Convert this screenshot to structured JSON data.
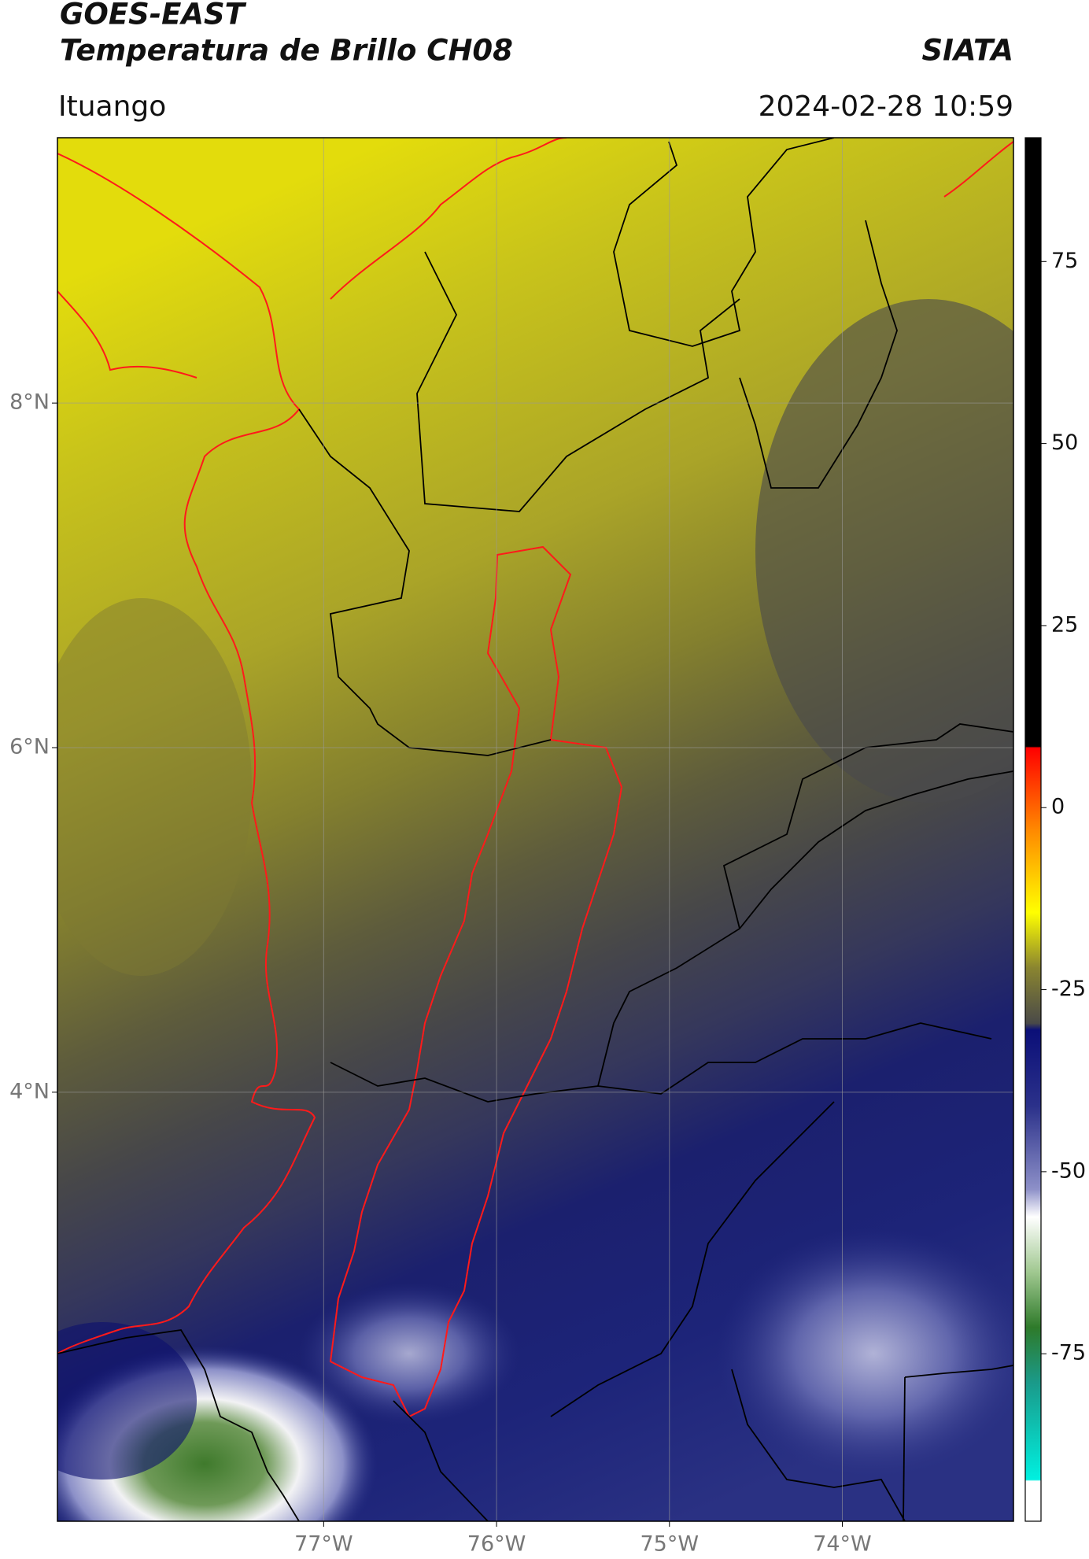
{
  "header": {
    "title": "GOES-EAST",
    "subtitle": "Temperatura de Brillo CH08",
    "source": "SIATA",
    "location": "Ituango",
    "datetime": "2024-02-28 10:59"
  },
  "map": {
    "xlim": [
      -78.54,
      -73.01
    ],
    "ylim": [
      1.51,
      9.54
    ],
    "xticks": [
      {
        "value": -77,
        "label": "77°W"
      },
      {
        "value": -76,
        "label": "76°W"
      },
      {
        "value": -75,
        "label": "75°W"
      },
      {
        "value": -74,
        "label": "74°W"
      }
    ],
    "yticks": [
      {
        "value": 8,
        "label": "8°N"
      },
      {
        "value": 6,
        "label": "6°N"
      },
      {
        "value": 4,
        "label": "4°N"
      }
    ],
    "grid": true
  },
  "colorbar": {
    "lim": [
      -98,
      92
    ],
    "ticks": [
      75,
      50,
      25,
      0,
      -25,
      -50,
      -75
    ]
  }
}
